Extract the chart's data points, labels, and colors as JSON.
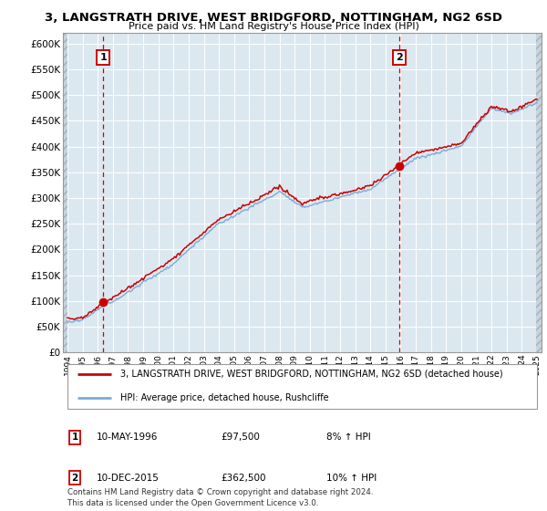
{
  "title": "3, LANGSTRATH DRIVE, WEST BRIDGFORD, NOTTINGHAM, NG2 6SD",
  "subtitle": "Price paid vs. HM Land Registry's House Price Index (HPI)",
  "ylim": [
    0,
    620000
  ],
  "yticks": [
    0,
    50000,
    100000,
    150000,
    200000,
    250000,
    300000,
    350000,
    400000,
    450000,
    500000,
    550000,
    600000
  ],
  "xlim_min": 1993.7,
  "xlim_max": 2025.3,
  "xlabel_years": [
    1994,
    1995,
    1996,
    1997,
    1998,
    1999,
    2000,
    2001,
    2002,
    2003,
    2004,
    2005,
    2006,
    2007,
    2008,
    2009,
    2010,
    2011,
    2012,
    2013,
    2014,
    2015,
    2016,
    2017,
    2018,
    2019,
    2020,
    2021,
    2022,
    2023,
    2024,
    2025
  ],
  "p1_year": 1996.37,
  "p1_price": 97500,
  "p2_year": 2015.92,
  "p2_price": 362500,
  "legend_property": "3, LANGSTRATH DRIVE, WEST BRIDGFORD, NOTTINGHAM, NG2 6SD (detached house)",
  "legend_hpi": "HPI: Average price, detached house, Rushcliffe",
  "ann1_date": "10-MAY-1996",
  "ann1_price": "£97,500",
  "ann1_pct": "8% ↑ HPI",
  "ann2_date": "10-DEC-2015",
  "ann2_price": "£362,500",
  "ann2_pct": "10% ↑ HPI",
  "footnote": "Contains HM Land Registry data © Crown copyright and database right 2024.\nThis data is licensed under the Open Government Licence v3.0.",
  "property_color": "#cc0000",
  "hpi_color": "#7aadd4",
  "background_color": "#dce8f0",
  "vline_color": "#cc0000",
  "grid_color": "#ffffff",
  "hatch_bg": "#c8d4dc"
}
